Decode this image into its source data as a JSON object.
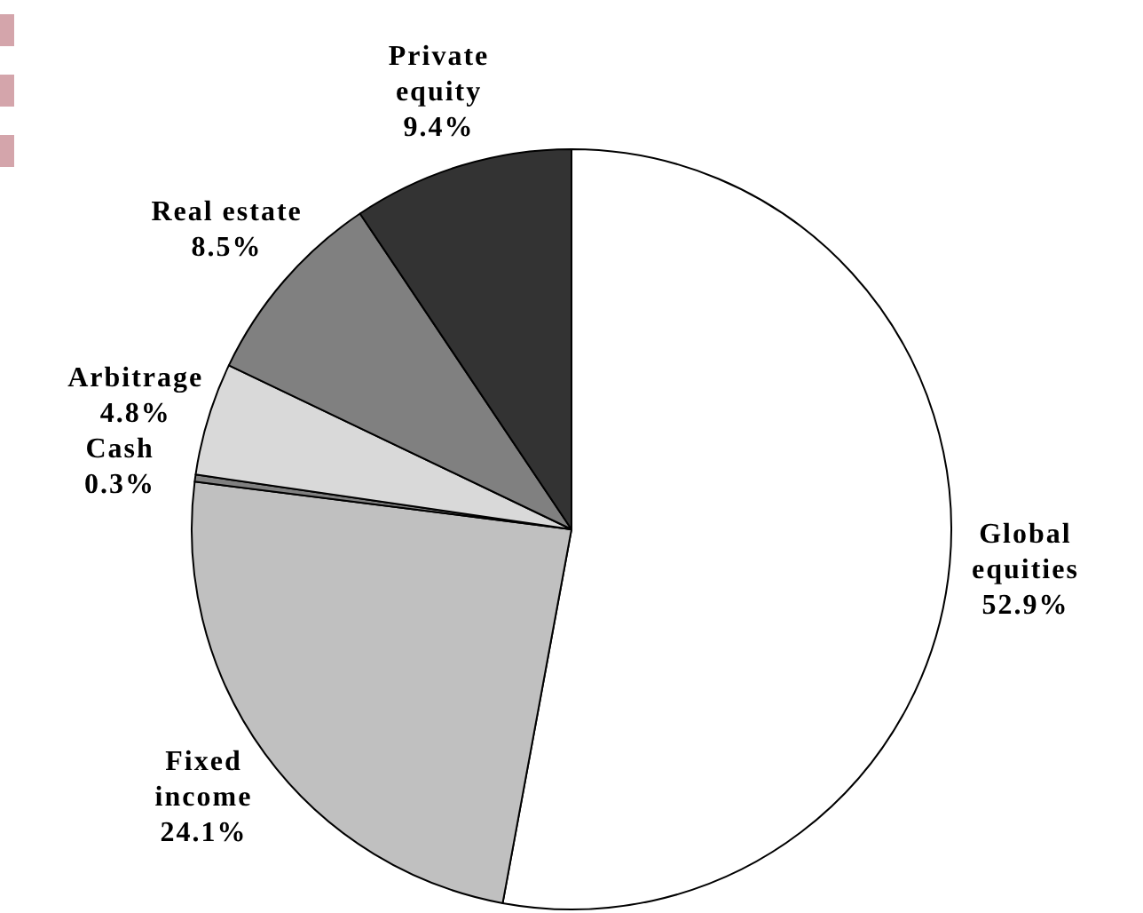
{
  "chart_data": {
    "type": "pie",
    "categories": [
      "Global\nequities",
      "Fixed\nincome",
      "Cash",
      "Arbitrage",
      "Real estate",
      "Private\nequity"
    ],
    "values": [
      52.9,
      24.1,
      0.3,
      4.8,
      8.5,
      9.4
    ],
    "colors": [
      "#ffffff",
      "#c0c0c0",
      "#808080",
      "#d9d9d9",
      "#808080",
      "#333333"
    ],
    "value_labels": [
      "52.9%",
      "24.1%",
      "0.3%",
      "4.8%",
      "8.5%",
      "9.4%"
    ]
  }
}
